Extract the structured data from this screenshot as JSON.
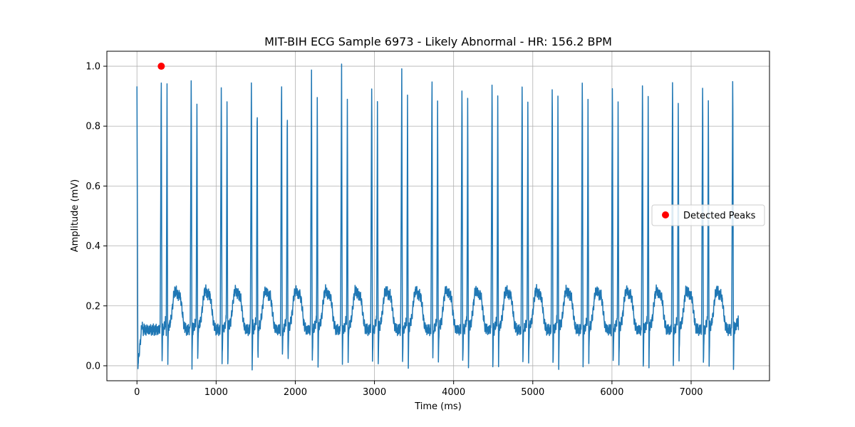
{
  "chart_data": {
    "type": "line",
    "title": "MIT-BIH ECG Sample 6973 - Likely Abnormal - HR: 156.2 BPM",
    "xlabel": "Time (ms)",
    "ylabel": "Amplitude (mV)",
    "xlim": [
      -380,
      7990
    ],
    "ylim": [
      -0.05,
      1.05
    ],
    "x_ticks": [
      0,
      1000,
      2000,
      3000,
      4000,
      5000,
      6000,
      7000
    ],
    "y_ticks": [
      0.0,
      0.2,
      0.4,
      0.6,
      0.8,
      1.0
    ],
    "x_tick_labels": [
      "0",
      "1000",
      "2000",
      "3000",
      "4000",
      "5000",
      "6000",
      "7000"
    ],
    "y_tick_labels": [
      "0.0",
      "0.2",
      "0.4",
      "0.6",
      "0.8",
      "1.0"
    ],
    "grid": true,
    "legend_position": "center-right",
    "series": [
      {
        "kind": "line",
        "color": "#1f77b4",
        "x_end": 7600,
        "start_value": 0.925,
        "end_value": 0.12,
        "beat_times": [
          307,
          686,
          1066,
          1446,
          1827,
          2205,
          2585,
          2966,
          3345,
          3727,
          4106,
          4486,
          4866,
          5246,
          5626,
          6006,
          6386,
          6766,
          7146,
          7526
        ],
        "premature_beat_times": [
          380,
          758,
          1138,
          1519,
          1899,
          2278,
          2658,
          3038,
          3418,
          3798,
          4178,
          4558,
          4938,
          5318,
          5698,
          6078,
          6458,
          6838,
          7218
        ],
        "peak_value": 1.0,
        "premature_peak_value": 0.925,
        "baseline_value": 0.12,
        "t_wave_value": 0.25,
        "trough_value": 0.0
      },
      {
        "name": "Detected Peaks",
        "kind": "scatter",
        "color": "#ff0000",
        "points": [
          [
            307,
            1.0
          ]
        ]
      }
    ]
  }
}
